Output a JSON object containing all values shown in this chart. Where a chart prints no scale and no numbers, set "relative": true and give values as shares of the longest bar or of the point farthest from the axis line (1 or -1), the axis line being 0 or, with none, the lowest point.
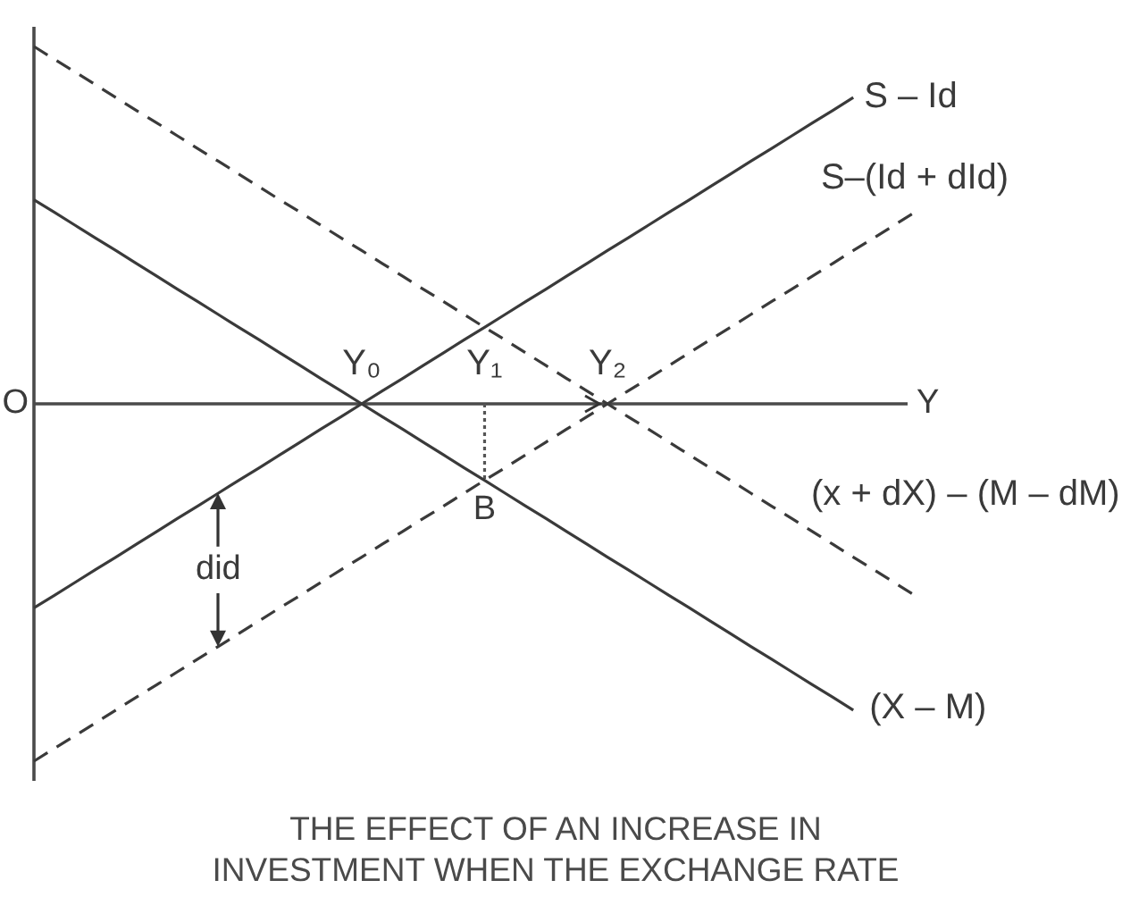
{
  "chart_data": {
    "type": "line",
    "relative": true,
    "marker": "none",
    "tick_labels": "x",
    "title": "THE EFFECT OF AN INCREASE IN INVESTMENT WHEN THE EXCHANGE RATE",
    "xlabel": "Y",
    "categories": [
      null,
      null,
      null,
      null,
      null,
      null,
      null,
      null,
      null,
      null,
      null,
      null,
      null,
      null,
      null,
      null,
      "Y₀",
      null,
      null,
      null,
      null,
      null,
      "Y₁",
      null,
      null,
      null,
      null,
      null,
      "Y₂",
      null,
      null,
      null,
      null,
      null,
      null,
      null,
      null,
      null,
      null,
      null,
      null,
      null,
      null,
      null
    ],
    "series": [
      {
        "name": "S – Id",
        "color": "#3a3a3a",
        "line_style": "solid",
        "values": [
          -0.571,
          -0.536,
          -0.5,
          -0.464,
          -0.429,
          -0.393,
          -0.357,
          -0.321,
          -0.286,
          -0.25,
          -0.214,
          -0.179,
          -0.143,
          -0.107,
          -0.071,
          -0.036,
          0,
          0.036,
          0.071,
          0.107,
          0.143,
          0.179,
          0.214,
          0.25,
          0.286,
          0.321,
          0.357,
          0.393,
          0.429,
          0.464,
          0.5,
          0.536,
          0.571,
          0.607,
          0.643,
          0.679,
          0.714,
          0.75,
          0.786,
          0.821,
          0.857,
          null,
          null,
          null
        ]
      },
      {
        "name": "S–(Id + dId)",
        "color": "#3a3a3a",
        "line_style": "dashed",
        "values": [
          -1,
          -0.964,
          -0.929,
          -0.893,
          -0.857,
          -0.821,
          -0.786,
          -0.75,
          -0.714,
          -0.679,
          -0.643,
          -0.607,
          -0.571,
          -0.536,
          -0.5,
          -0.464,
          -0.429,
          -0.393,
          -0.357,
          -0.321,
          -0.286,
          -0.25,
          -0.214,
          -0.179,
          -0.143,
          -0.107,
          -0.071,
          -0.036,
          0,
          0.036,
          0.071,
          0.107,
          0.143,
          0.179,
          0.214,
          0.25,
          0.286,
          0.321,
          0.357,
          0.393,
          0.429,
          0.464,
          0.5,
          0.536
        ]
      },
      {
        "name": "(X – M)",
        "color": "#3a3a3a",
        "line_style": "solid",
        "values": [
          0.571,
          0.536,
          0.5,
          0.464,
          0.429,
          0.393,
          0.357,
          0.321,
          0.286,
          0.25,
          0.214,
          0.179,
          0.143,
          0.107,
          0.071,
          0.036,
          0,
          -0.036,
          -0.071,
          -0.107,
          -0.143,
          -0.179,
          -0.214,
          -0.25,
          -0.286,
          -0.321,
          -0.357,
          -0.393,
          -0.429,
          -0.464,
          -0.5,
          -0.536,
          -0.571,
          -0.607,
          -0.643,
          -0.679,
          -0.714,
          -0.75,
          -0.786,
          -0.821,
          -0.857,
          null,
          null,
          null
        ]
      },
      {
        "name": "(x + dX) – (M – dM)",
        "color": "#3a3a3a",
        "line_style": "dashed",
        "values": [
          1,
          0.964,
          0.929,
          0.893,
          0.857,
          0.821,
          0.786,
          0.75,
          0.714,
          0.679,
          0.643,
          0.607,
          0.571,
          0.536,
          0.5,
          0.464,
          0.429,
          0.393,
          0.357,
          0.321,
          0.286,
          0.25,
          0.214,
          0.179,
          0.143,
          0.107,
          0.071,
          0.036,
          0,
          -0.036,
          -0.071,
          -0.107,
          -0.143,
          -0.179,
          -0.214,
          -0.25,
          -0.286,
          -0.321,
          -0.357,
          -0.393,
          -0.429,
          -0.464,
          -0.5,
          -0.536
        ]
      },
      {
        "type": "line",
        "color": "#555555",
        "line_style": "dotted",
        "x": [
          "Y₁",
          "Y₁"
        ],
        "values": [
          0,
          -0.214
        ]
      }
    ],
    "annotations": [
      "O",
      {
        "text": "B",
        "x": "Y₁",
        "y": -0.214
      },
      "did"
    ]
  }
}
